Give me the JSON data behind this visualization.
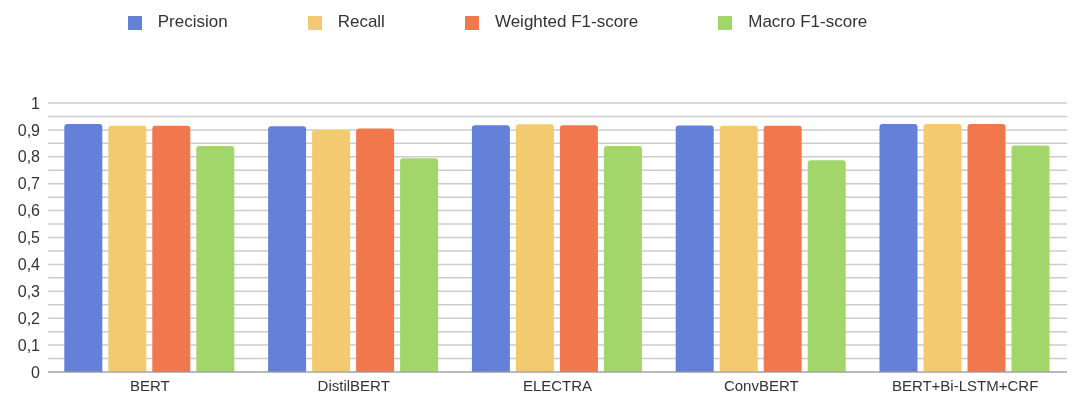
{
  "chart_data": {
    "type": "bar",
    "categories": [
      "BERT",
      "DistilBERT",
      "ELECTRA",
      "ConvBERT",
      "BERT+Bi-LSTM+CRF"
    ],
    "series": [
      {
        "name": "Precision",
        "color": "#6480d8",
        "values": [
          0.922,
          0.914,
          0.917,
          0.916,
          0.922
        ]
      },
      {
        "name": "Recall",
        "color": "#f3ca6f",
        "values": [
          0.915,
          0.9,
          0.921,
          0.915,
          0.922
        ]
      },
      {
        "name": "Weighted F1-score",
        "color": "#f1784d",
        "values": [
          0.915,
          0.905,
          0.917,
          0.915,
          0.922
        ]
      },
      {
        "name": "Macro F1-score",
        "color": "#a2d66b",
        "values": [
          0.84,
          0.795,
          0.84,
          0.787,
          0.842
        ]
      }
    ],
    "ylim": [
      0,
      1
    ],
    "yticks": [
      {
        "value": 0,
        "label": "0"
      },
      {
        "value": 0.05,
        "label": null
      },
      {
        "value": 0.1,
        "label": "0,1"
      },
      {
        "value": 0.15,
        "label": null
      },
      {
        "value": 0.2,
        "label": "0,2"
      },
      {
        "value": 0.25,
        "label": null
      },
      {
        "value": 0.3,
        "label": "0,3"
      },
      {
        "value": 0.35,
        "label": null
      },
      {
        "value": 0.4,
        "label": "0,4"
      },
      {
        "value": 0.45,
        "label": null
      },
      {
        "value": 0.5,
        "label": "0,5"
      },
      {
        "value": 0.55,
        "label": null
      },
      {
        "value": 0.6,
        "label": "0,6"
      },
      {
        "value": 0.65,
        "label": null
      },
      {
        "value": 0.7,
        "label": "0,7"
      },
      {
        "value": 0.75,
        "label": null
      },
      {
        "value": 0.8,
        "label": "0,8"
      },
      {
        "value": 0.85,
        "label": null
      },
      {
        "value": 0.9,
        "label": "0,9"
      },
      {
        "value": 0.95,
        "label": null
      },
      {
        "value": 1,
        "label": "1"
      }
    ],
    "grid": "y",
    "legend": "top"
  }
}
